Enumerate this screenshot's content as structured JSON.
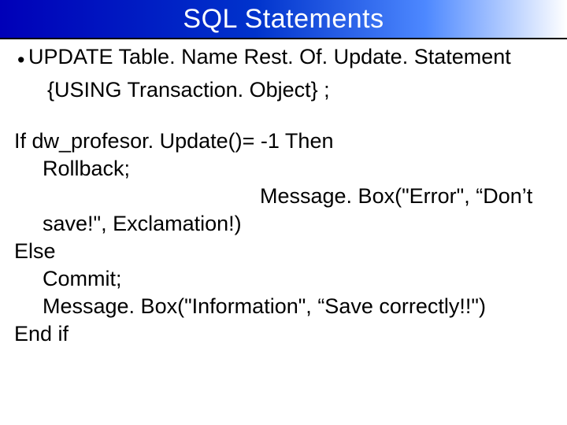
{
  "slide": {
    "title": "SQL Statements",
    "title_color": "#ffffff",
    "title_fontsize": 34,
    "title_gradient_start": "#0000b8",
    "title_gradient_mid": "#0033cc",
    "title_gradient_end": "#ffffff",
    "title_underline_color": "#000000",
    "body_fontsize": 27,
    "body_color": "#000000",
    "bullet": {
      "line1": "UPDATE Table. Name Rest. Of. Update. Statement",
      "line2": "{USING Transaction. Object} ;"
    },
    "code": {
      "l1": "If dw_profesor. Update()= -1 Then",
      "l2": "Rollback;",
      "l3a": "Message. Box(\"Error\", “Don’t",
      "l3b": "save!\", Exclamation!)",
      "l4": "Else",
      "l5": "Commit;",
      "l6": "Message. Box(\"Information\", “Save correctly!!\")",
      "l7": "End if"
    }
  }
}
